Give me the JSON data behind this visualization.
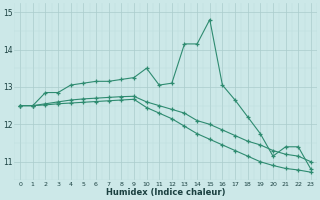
{
  "xlabel": "Humidex (Indice chaleur)",
  "x_values": [
    0,
    1,
    2,
    3,
    4,
    5,
    6,
    7,
    8,
    9,
    10,
    11,
    12,
    13,
    14,
    15,
    16,
    17,
    18,
    19,
    20,
    21,
    22,
    23
  ],
  "line1": [
    12.5,
    12.5,
    12.85,
    12.85,
    13.05,
    13.1,
    13.15,
    13.15,
    13.2,
    13.25,
    13.5,
    13.05,
    13.1,
    14.15,
    14.15,
    14.8,
    13.05,
    12.65,
    12.2,
    11.75,
    11.15,
    11.4,
    11.4,
    10.8
  ],
  "line2": [
    12.5,
    12.5,
    12.55,
    12.6,
    12.65,
    12.68,
    12.7,
    12.72,
    12.74,
    12.75,
    12.6,
    12.5,
    12.4,
    12.3,
    12.1,
    12.0,
    11.85,
    11.7,
    11.55,
    11.45,
    11.3,
    11.2,
    11.15,
    11.0
  ],
  "line3": [
    12.5,
    12.5,
    12.52,
    12.55,
    12.57,
    12.59,
    12.61,
    12.63,
    12.65,
    12.67,
    12.45,
    12.3,
    12.15,
    11.95,
    11.75,
    11.6,
    11.45,
    11.3,
    11.15,
    11.0,
    10.9,
    10.82,
    10.78,
    10.72
  ],
  "line_color": "#2e8b70",
  "bg_color": "#cce8e8",
  "grid_color": "#aacccc",
  "grid_minor_color": "#bbdddd",
  "ylim": [
    10.5,
    15.25
  ],
  "yticks": [
    11,
    12,
    13,
    14,
    15
  ],
  "xlim": [
    -0.5,
    23.5
  ]
}
